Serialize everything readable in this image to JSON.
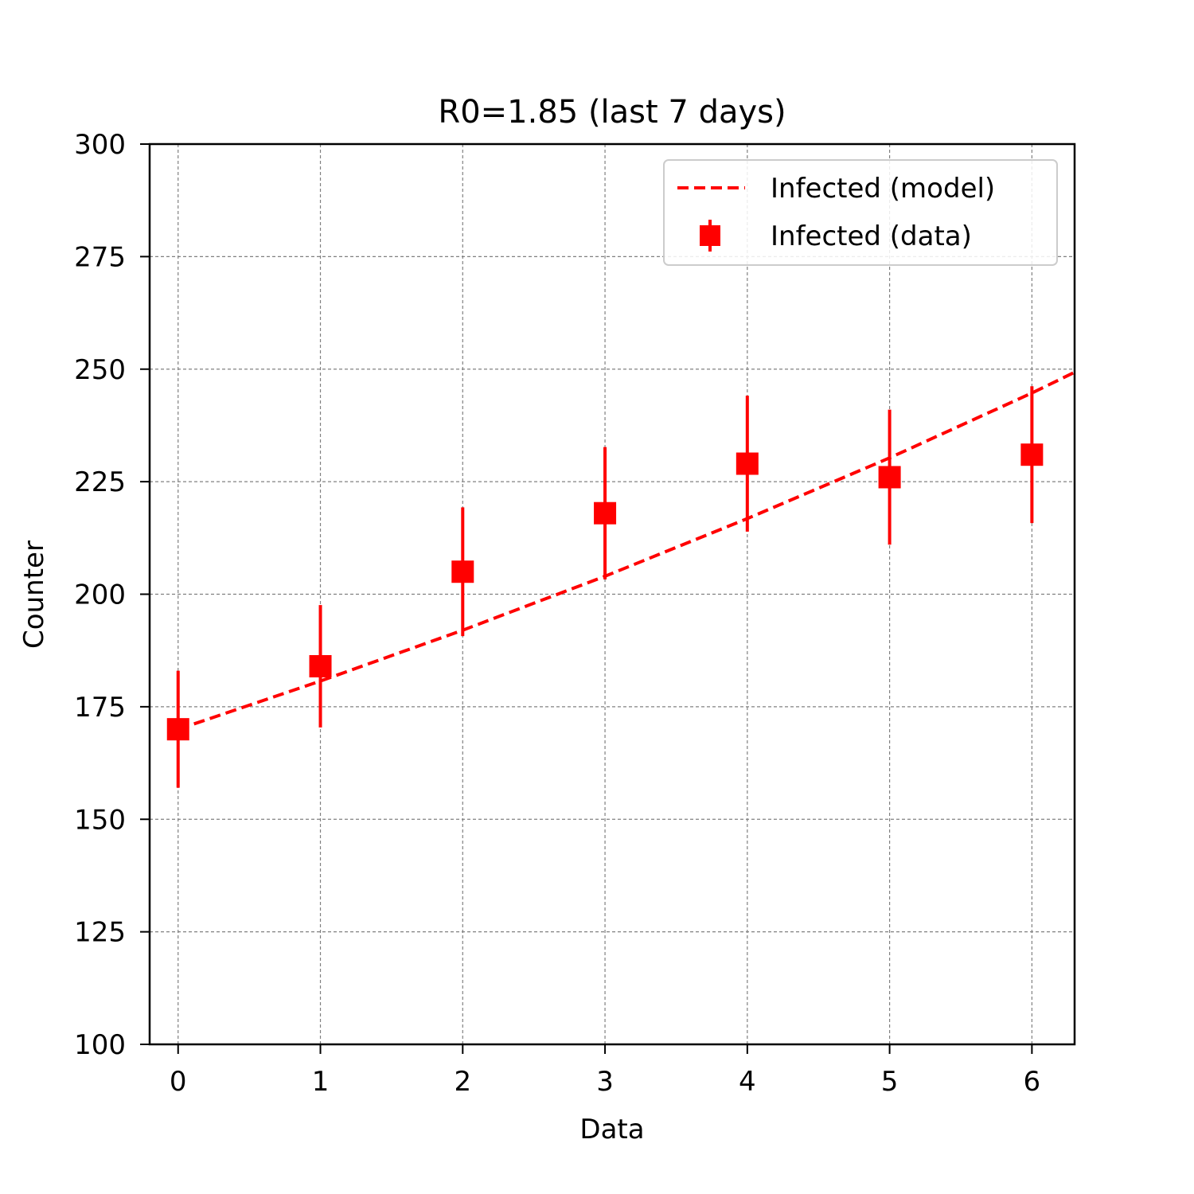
{
  "chart_data": {
    "type": "scatter",
    "title": "R0=1.85 (last 7 days)",
    "xlabel": "Data",
    "ylabel": "Counter",
    "xlim": [
      -0.2,
      6.3
    ],
    "ylim": [
      100,
      300
    ],
    "xticks": [
      0,
      1,
      2,
      3,
      4,
      5,
      6
    ],
    "yticks": [
      100,
      125,
      150,
      175,
      200,
      225,
      250,
      275,
      300
    ],
    "grid": true,
    "legend_position": "top-right",
    "series": [
      {
        "name": "Infected (model)",
        "style": "dashed-line",
        "color": "#ff0000",
        "x": [
          0,
          1,
          2,
          3,
          4,
          5,
          6,
          6.3
        ],
        "y": [
          170,
          180.7,
          192.0,
          204.0,
          216.8,
          230.3,
          244.7,
          249.3
        ]
      },
      {
        "name": "Infected (data)",
        "style": "errorbar-square",
        "color": "#ff0000",
        "x": [
          0,
          1,
          2,
          3,
          4,
          5,
          6
        ],
        "y": [
          170,
          184,
          205,
          218,
          229,
          226,
          231
        ],
        "yerr": [
          13,
          13.6,
          14.3,
          14.7,
          15.1,
          15.0,
          15.2
        ]
      }
    ]
  }
}
